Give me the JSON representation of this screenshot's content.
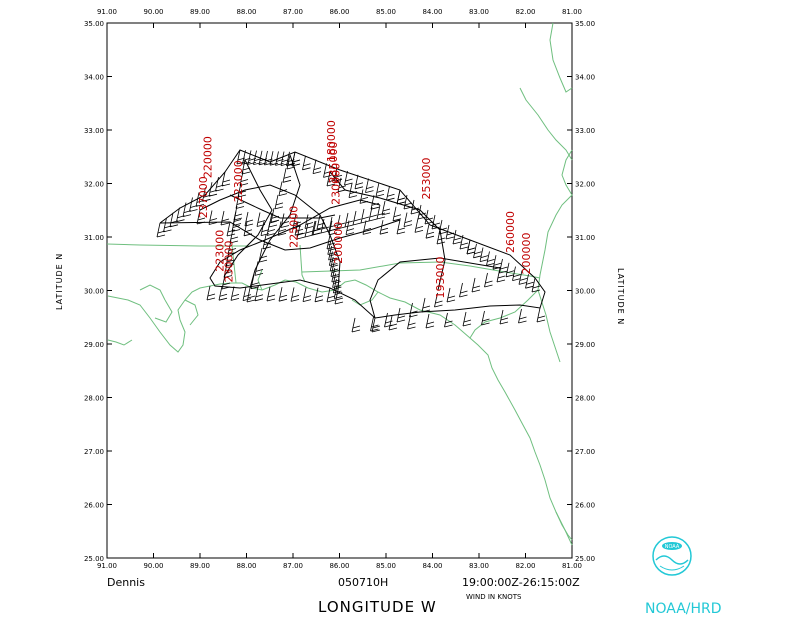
{
  "map": {
    "storm_name": "Dennis",
    "date_code": "050710H",
    "time_range": "19:00:00Z-26:15:00Z",
    "wind_note": "WIND IN KNOTS",
    "x_axis_title": "LONGITUDE  W",
    "y_axis_title_left": "LATITUDE  N",
    "y_axis_title_right": "LATITUDE  N",
    "agency_label": "NOAA/HRD",
    "logo_text": "NOAA",
    "lon_ticks": [
      "91.00",
      "90.00",
      "89.00",
      "88.00",
      "87.00",
      "86.00",
      "85.00",
      "84.00",
      "83.00",
      "82.00",
      "81.00"
    ],
    "lat_ticks": [
      "25.00",
      "26.00",
      "27.00",
      "28.00",
      "29.00",
      "30.00",
      "31.00",
      "32.00",
      "33.00",
      "34.00",
      "35.00"
    ],
    "time_labels": [
      {
        "text": "220000",
        "lon": 88.75,
        "lat": 32.1
      },
      {
        "text": "237000",
        "lon": 88.85,
        "lat": 31.35
      },
      {
        "text": "223000",
        "lon": 88.1,
        "lat": 31.65
      },
      {
        "text": "223000",
        "lon": 88.5,
        "lat": 30.35
      },
      {
        "text": "230000",
        "lon": 88.3,
        "lat": 30.15
      },
      {
        "text": "180000",
        "lon": 86.1,
        "lat": 32.4
      },
      {
        "text": "235000",
        "lon": 86.05,
        "lat": 32.0
      },
      {
        "text": "230000",
        "lon": 86.0,
        "lat": 31.6
      },
      {
        "text": "225000",
        "lon": 86.9,
        "lat": 30.8
      },
      {
        "text": "200000",
        "lon": 85.95,
        "lat": 30.5
      },
      {
        "text": "253000",
        "lon": 84.05,
        "lat": 31.7
      },
      {
        "text": "193000",
        "lon": 83.75,
        "lat": 29.85
      },
      {
        "text": "260000",
        "lon": 82.25,
        "lat": 30.7
      },
      {
        "text": "200000",
        "lon": 81.9,
        "lat": 30.3
      }
    ],
    "colors": {
      "coast": "#6fbf7f",
      "track": "#000000",
      "labels": "#c00000",
      "logo": "#22c8d6"
    }
  }
}
